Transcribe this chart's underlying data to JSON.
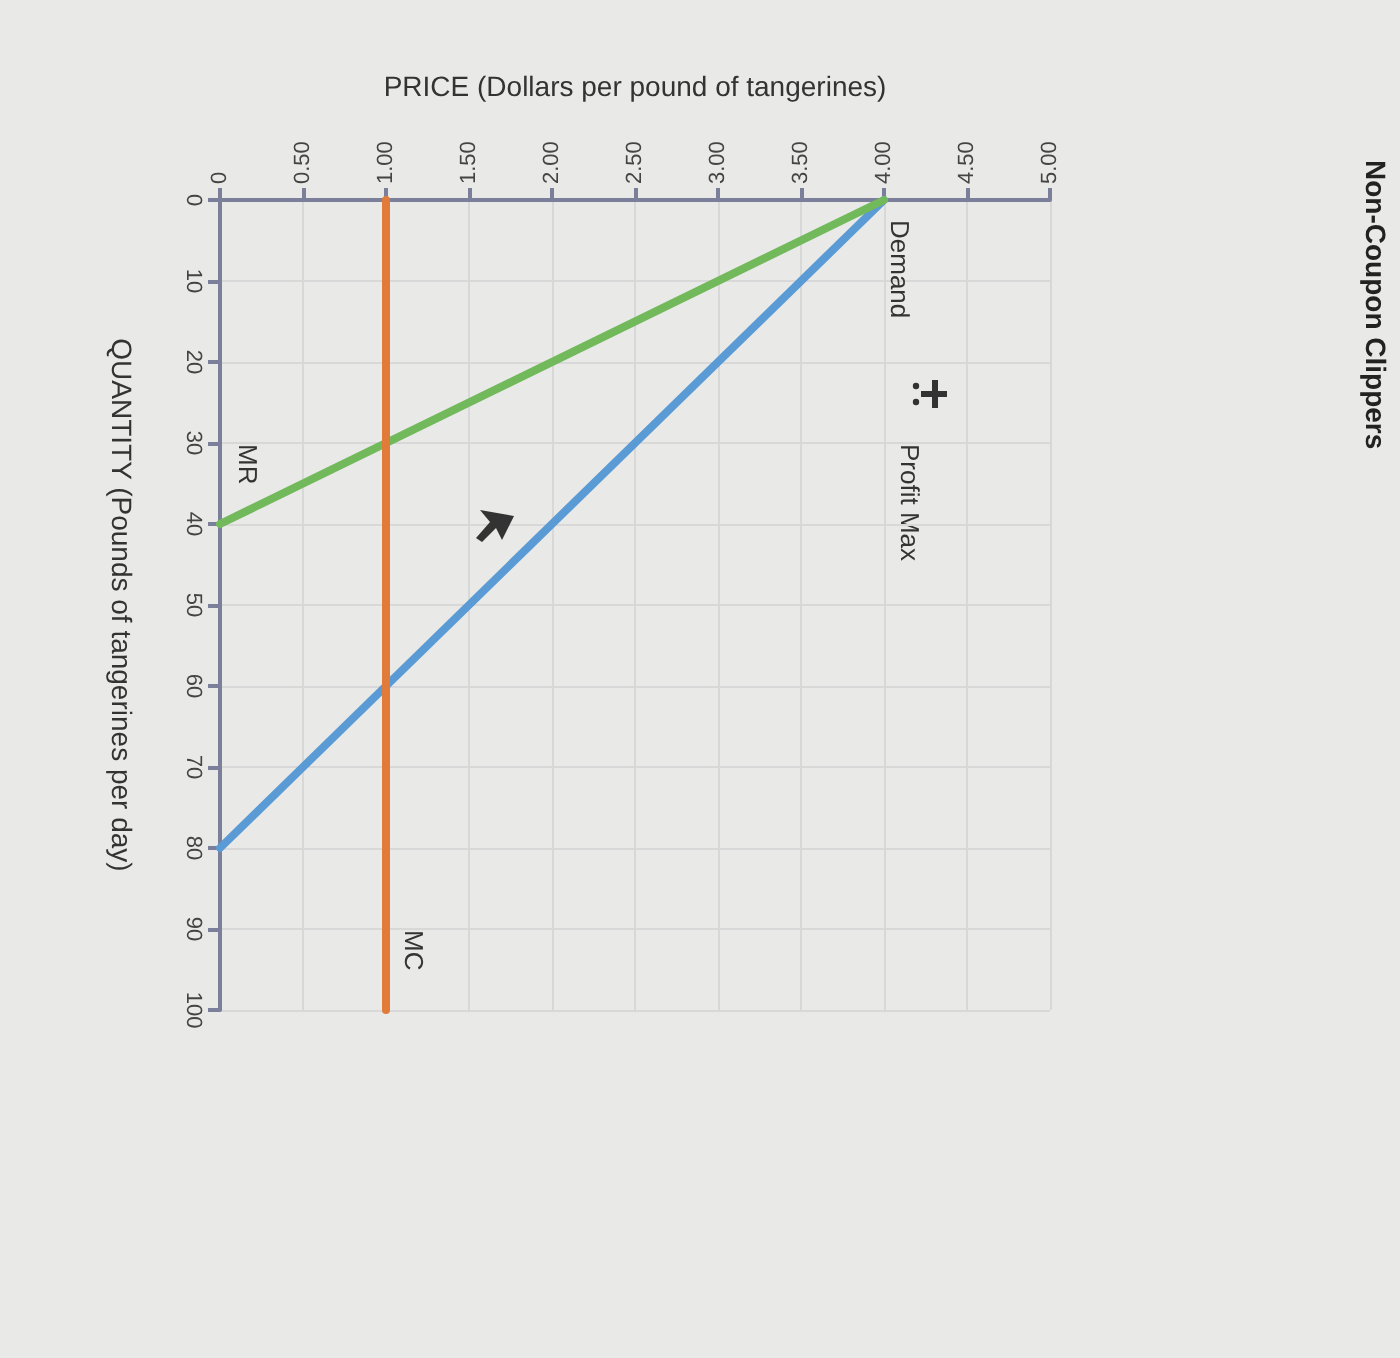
{
  "chart_data": {
    "type": "line",
    "title": "Non-Coupon Clippers",
    "xlabel": "PRICE (Dollars per pound of tangerines)",
    "ylabel": "QUANTITY (Pounds of tangerines per day)",
    "series": [
      {
        "name": "Demand",
        "color": "#5b9bd5",
        "x": [
          0,
          4
        ],
        "values": [
          80,
          0
        ]
      },
      {
        "name": "MR",
        "color": "#72b95c",
        "x": [
          4,
          0
        ],
        "values": [
          0,
          40
        ]
      },
      {
        "name": "MC",
        "color": "#e07b39",
        "x": [
          1,
          1
        ],
        "values": [
          0,
          100
        ]
      }
    ],
    "xlim": [
      0,
      5
    ],
    "xticks": [
      0,
      {
        "value": 0.5,
        "label": "0.50"
      },
      {
        "value": 1,
        "label": "1.00"
      },
      {
        "value": 1.5,
        "label": "1.50"
      },
      {
        "value": 2,
        "label": "2.00"
      },
      {
        "value": 2.5,
        "label": "2.50"
      },
      {
        "value": 3,
        "label": "3.00"
      },
      {
        "value": 3.5,
        "label": "3.50"
      },
      {
        "value": 4,
        "label": "4.00"
      },
      {
        "value": 4.5,
        "label": "4.50"
      },
      {
        "value": 5,
        "label": "5.00"
      }
    ],
    "ylim": [
      100,
      0
    ],
    "yticks": [
      0,
      10,
      20,
      30,
      40,
      50,
      60,
      70,
      80,
      90,
      100
    ],
    "annotations": [
      "Profit Max"
    ],
    "grid": true,
    "legend": false,
    "marker": "none",
    "line_style": "solid"
  }
}
